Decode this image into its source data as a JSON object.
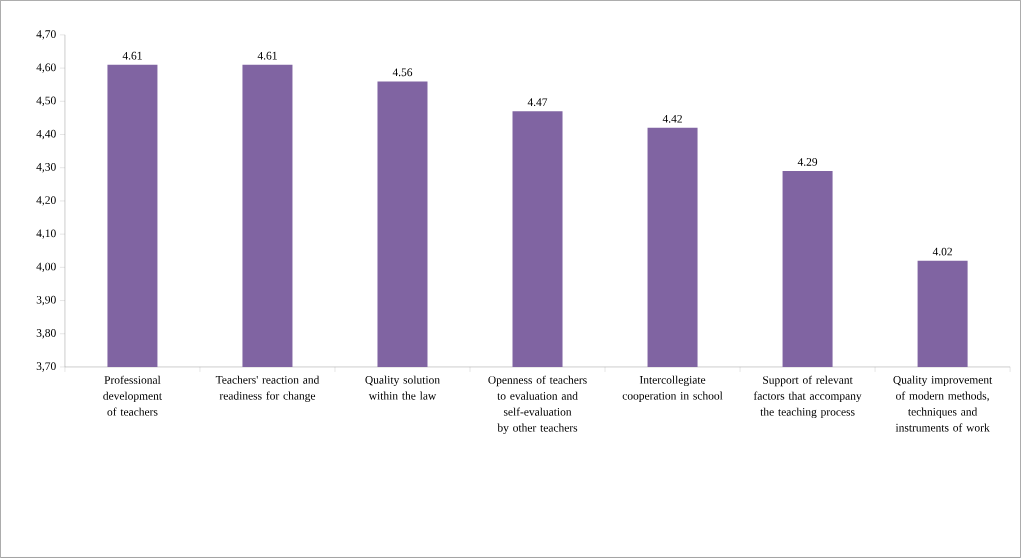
{
  "chart_data": {
    "type": "bar",
    "categories": [
      "Professional development of teachers",
      "Teachers' reaction and readiness for change",
      "Quality solution within the law",
      "Openness of teachers to evaluation and self-evaluation by other teachers",
      "Intercollegiate cooperation in school",
      "Support of relevant factors that accompany the teaching process",
      "Quality improvement of modern methods, techniques and instruments of work"
    ],
    "values": [
      4.61,
      4.61,
      4.56,
      4.47,
      4.42,
      4.29,
      4.02
    ],
    "color": "#8064a2",
    "ylim": [
      3.7,
      4.7
    ],
    "yticks": [
      {
        "value": 3.7,
        "label": "3,70"
      },
      {
        "value": 3.8,
        "label": "3,80"
      },
      {
        "value": 3.9,
        "label": "3,90"
      },
      {
        "value": 4.0,
        "label": "4,00"
      },
      {
        "value": 4.1,
        "label": "4,10"
      },
      {
        "value": 4.2,
        "label": "4,20"
      },
      {
        "value": 4.3,
        "label": "4,30"
      },
      {
        "value": 4.4,
        "label": "4,40"
      },
      {
        "value": 4.5,
        "label": "4,50"
      },
      {
        "value": 4.6,
        "label": "4,60"
      },
      {
        "value": 4.7,
        "label": "4,70"
      }
    ],
    "data_labels": true,
    "grid": false
  }
}
